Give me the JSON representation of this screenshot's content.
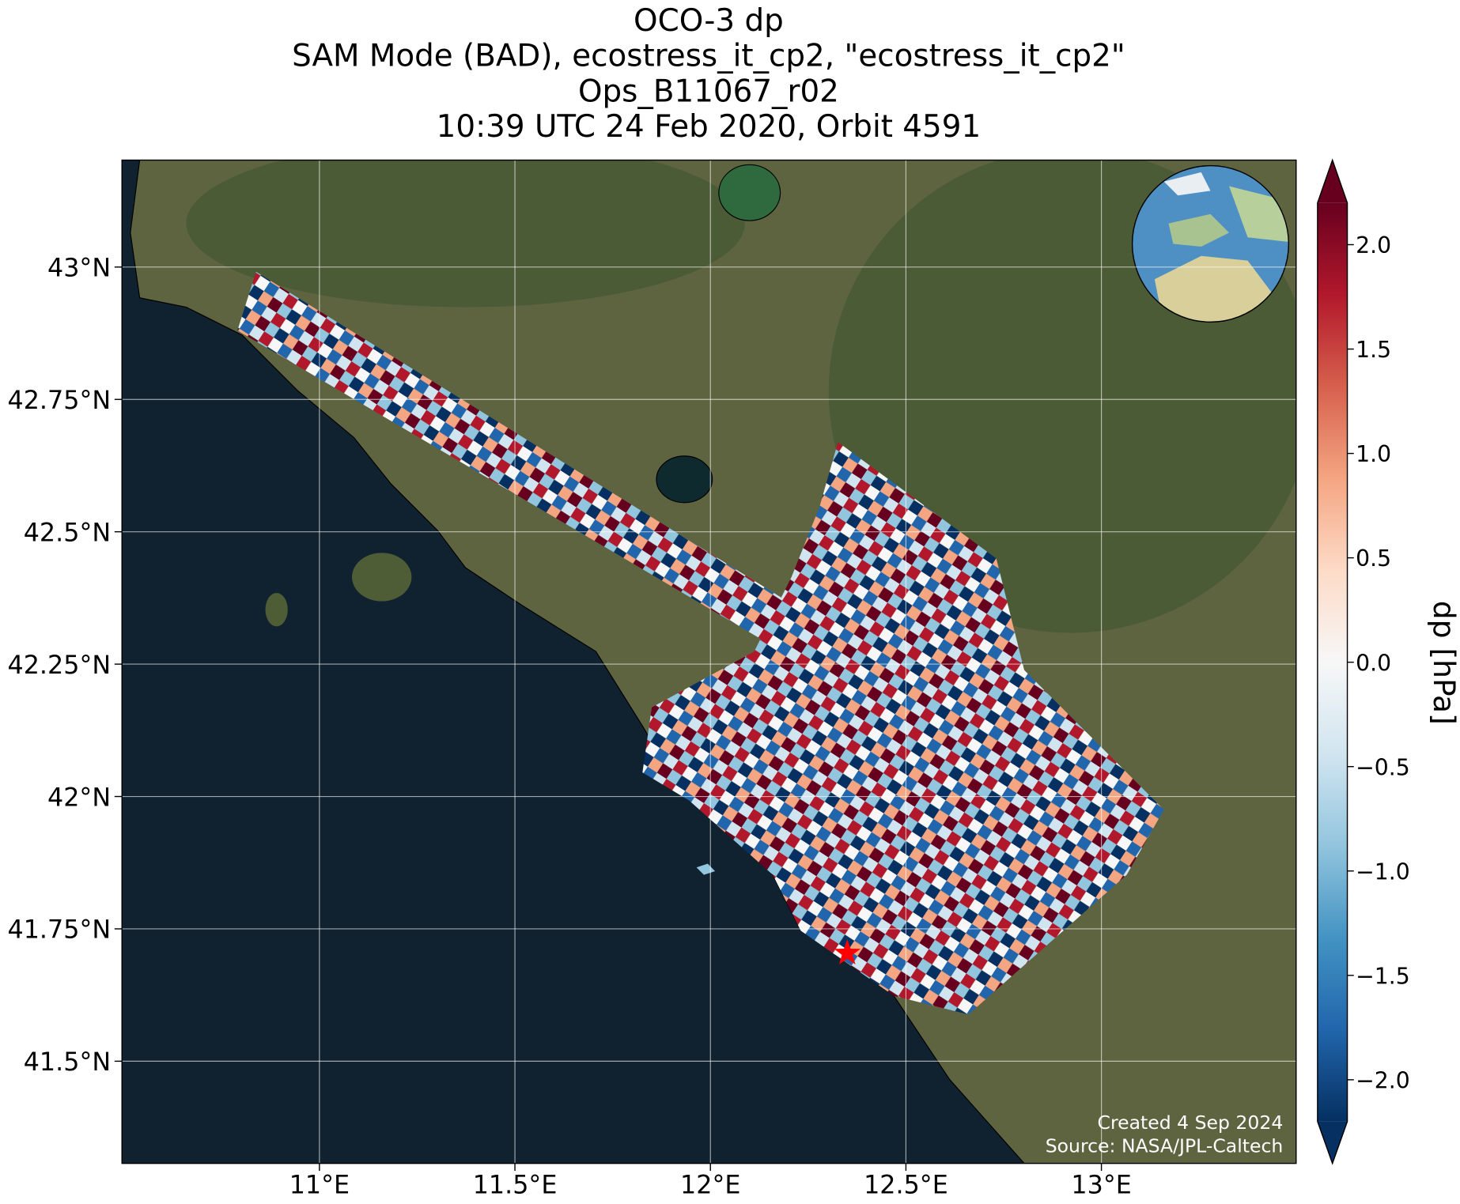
{
  "chart_data": {
    "type": "map",
    "title_lines": [
      "OCO-3 dp",
      "SAM Mode (BAD), ecostress_it_cp2, \"ecostress_it_cp2\"",
      "Ops_B11067_r02",
      "10:39 UTC 24 Feb 2020, Orbit 4591"
    ],
    "xlim": [
      10.495,
      13.498
    ],
    "ylim": [
      41.307,
      43.202
    ],
    "xticks": [
      {
        "value": 11,
        "label": "11°E"
      },
      {
        "value": 11.5,
        "label": "11.5°E"
      },
      {
        "value": 12,
        "label": "12°E"
      },
      {
        "value": 12.5,
        "label": "12.5°E"
      },
      {
        "value": 13,
        "label": "13°E"
      }
    ],
    "yticks": [
      {
        "value": 43,
        "label": "43°N"
      },
      {
        "value": 42.75,
        "label": "42.75°N"
      },
      {
        "value": 42.5,
        "label": "42.5°N"
      },
      {
        "value": 42.25,
        "label": "42.25°N"
      },
      {
        "value": 42,
        "label": "42°N"
      },
      {
        "value": 41.75,
        "label": "41.75°N"
      },
      {
        "value": 41.5,
        "label": "41.5°N"
      }
    ],
    "grid": true,
    "target": {
      "lon": 12.35,
      "lat": 41.704,
      "color": "#ff0000"
    },
    "colorbar": {
      "label": "dp [hPa]",
      "clim": [
        -2.2,
        2.2
      ],
      "colors": [
        "#053061",
        "#2166ac",
        "#4393c3",
        "#92c5de",
        "#d1e5f0",
        "#f7f7f7",
        "#fddbc7",
        "#f4a582",
        "#d6604d",
        "#b2182b",
        "#67001f"
      ],
      "ticks": [
        {
          "value": 2.0,
          "label": "2.0"
        },
        {
          "value": 1.5,
          "label": "1.5"
        },
        {
          "value": 1.0,
          "label": "1.0"
        },
        {
          "value": 0.5,
          "label": "0.5"
        },
        {
          "value": 0.0,
          "label": "0.0"
        },
        {
          "value": -0.5,
          "label": "−0.5"
        },
        {
          "value": -1.0,
          "label": "−1.0"
        },
        {
          "value": -1.5,
          "label": "−1.5"
        },
        {
          "value": -2.0,
          "label": "−2.0"
        }
      ]
    },
    "credits": [
      "Created 4 Sep 2024",
      "Source: NASA/JPL-Caltech"
    ]
  }
}
